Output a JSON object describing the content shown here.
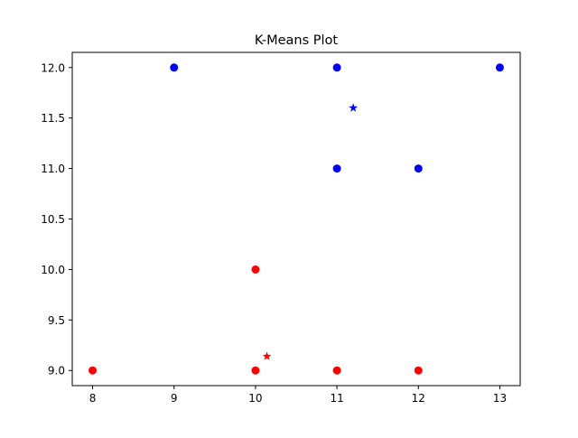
{
  "chart_data": {
    "type": "scatter",
    "title": "K-Means Plot",
    "xlabel": "",
    "ylabel": "",
    "xlim": [
      7.75,
      13.25
    ],
    "ylim": [
      8.85,
      12.15
    ],
    "xticks": [
      "8",
      "9",
      "10",
      "11",
      "12",
      "13"
    ],
    "yticks": [
      "9.0",
      "9.5",
      "10.0",
      "10.5",
      "11.0",
      "11.5",
      "12.0"
    ],
    "grid": false,
    "legend": "none",
    "series": [
      {
        "color": "#ff0000",
        "marker": "circle",
        "points": [
          {
            "x": 8,
            "y": 9
          },
          {
            "x": 10,
            "y": 9
          },
          {
            "x": 10,
            "y": 10
          },
          {
            "x": 11,
            "y": 9
          },
          {
            "x": 12,
            "y": 9
          }
        ]
      },
      {
        "color": "#0000ff",
        "marker": "circle",
        "points": [
          {
            "x": 9,
            "y": 12
          },
          {
            "x": 11,
            "y": 12
          },
          {
            "x": 13,
            "y": 12
          },
          {
            "x": 11,
            "y": 11
          },
          {
            "x": 12,
            "y": 11
          }
        ]
      },
      {
        "color": "#ff0000",
        "marker": "star",
        "points": [
          {
            "x": 10.14,
            "y": 9.14
          }
        ]
      },
      {
        "color": "#0000ff",
        "marker": "star",
        "points": [
          {
            "x": 11.2,
            "y": 11.6
          }
        ]
      }
    ]
  }
}
